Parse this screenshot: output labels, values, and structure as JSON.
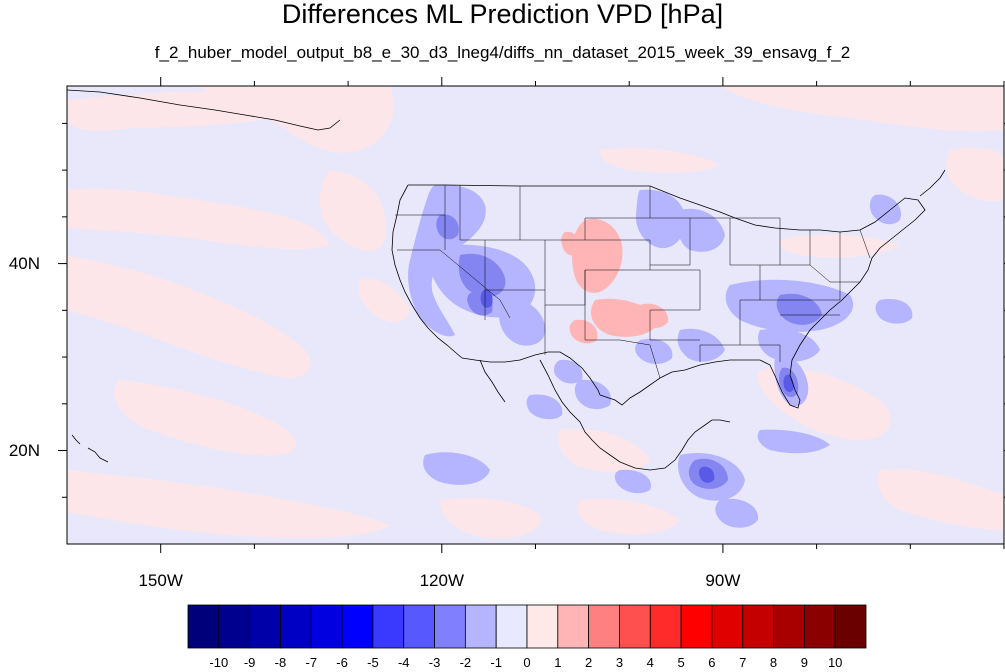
{
  "title": "Differences ML Prediction VPD [hPa]",
  "subtitle": "f_2_huber_model_output_b8_e_30_d3_lneg4/diffs_nn_dataset_2015_week_39_ensavg_f_2",
  "axes": {
    "lat_labels": [
      {
        "text": "40N",
        "value": 40
      },
      {
        "text": "20N",
        "value": 20
      }
    ],
    "lon_labels": [
      {
        "text": "150W",
        "value": -150
      },
      {
        "text": "120W",
        "value": -120
      },
      {
        "text": "90W",
        "value": -90
      }
    ],
    "lon_range": [
      -160,
      -60
    ],
    "lat_range": [
      10,
      59
    ]
  },
  "colorbar": {
    "levels": [
      "-10",
      "-9",
      "-8",
      "-7",
      "-6",
      "-5",
      "-4",
      "-3",
      "-2",
      "-1",
      "0",
      "1",
      "2",
      "3",
      "4",
      "5",
      "6",
      "7",
      "8",
      "9",
      "10"
    ],
    "colors": [
      "#00007a",
      "#00008f",
      "#0000a8",
      "#0000c4",
      "#0000e0",
      "#0000ff",
      "#3a3aff",
      "#5858ff",
      "#8080ff",
      "#b5b5ff",
      "#e8e8ff",
      "#ffe8e8",
      "#ffb5b5",
      "#ff8080",
      "#ff5050",
      "#ff2a2a",
      "#ff0000",
      "#e00000",
      "#c40000",
      "#a80000",
      "#8a0000",
      "#6a0000"
    ]
  },
  "field_colors": {
    "background": "#e8e8fa",
    "slight_positive": "#fde6ea",
    "minus_1_to_2": "#b5b5ff",
    "minus_2_to_3": "#8585f2",
    "minus_3_to_4": "#5a5ae8",
    "plus_1_to_2": "#ffb5b5",
    "coast": "#000000"
  }
}
